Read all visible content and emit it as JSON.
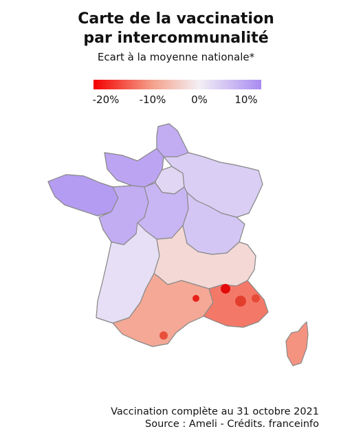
{
  "title": {
    "line1": "Carte de la vaccination",
    "line2": "par intercommunalité"
  },
  "subtitle": "Ecart à la moyenne nationale*",
  "legend": {
    "labels": [
      "-20%",
      "-10%",
      "0%",
      "10%"
    ],
    "colors": {
      "low": "#f40000",
      "mid_low": "#f4a08a",
      "zero": "#f3f0f5",
      "high": "#a98bf2"
    }
  },
  "footer": {
    "line1": "Vaccination complète au 31 octobre 2021",
    "line2": "Source : Ameli - Crédits. franceinfo"
  },
  "map": {
    "regions": [
      {
        "name": "nord",
        "deviation_pct": 8
      },
      {
        "name": "bretagne",
        "deviation_pct": 10
      },
      {
        "name": "normandie",
        "deviation_pct": 9
      },
      {
        "name": "pays-de-la-loire",
        "deviation_pct": 8
      },
      {
        "name": "ile-de-france",
        "deviation_pct": 3
      },
      {
        "name": "grand-est",
        "deviation_pct": 4
      },
      {
        "name": "centre",
        "deviation_pct": 7
      },
      {
        "name": "bourgogne-franche-comte",
        "deviation_pct": 5
      },
      {
        "name": "nouvelle-aquitaine",
        "deviation_pct": 2
      },
      {
        "name": "auvergne-rhone-alpes",
        "deviation_pct": -3
      },
      {
        "name": "occitanie",
        "deviation_pct": -9
      },
      {
        "name": "paca",
        "deviation_pct": -13
      },
      {
        "name": "corse",
        "deviation_pct": -11
      }
    ]
  }
}
